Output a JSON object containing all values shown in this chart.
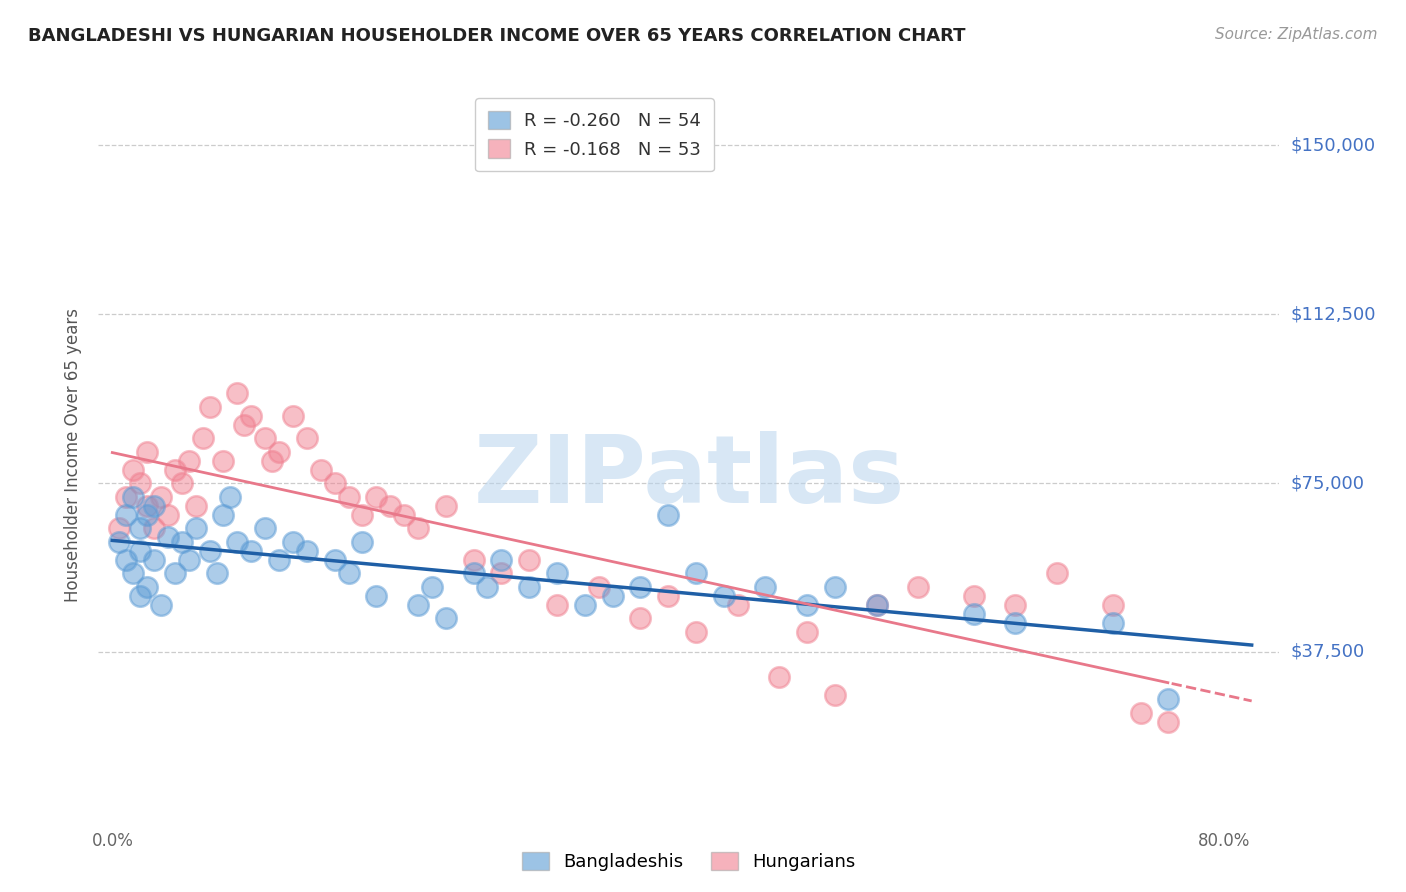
{
  "title": "BANGLADESHI VS HUNGARIAN HOUSEHOLDER INCOME OVER 65 YEARS CORRELATION CHART",
  "source": "Source: ZipAtlas.com",
  "ylabel": "Householder Income Over 65 years",
  "ylim": [
    0,
    162500
  ],
  "xlim": [
    -0.01,
    0.84
  ],
  "yticks": [
    0,
    37500,
    75000,
    112500,
    150000
  ],
  "ytick_labels": [
    "",
    "$37,500",
    "$75,000",
    "$112,500",
    "$150,000"
  ],
  "background_color": "#ffffff",
  "grid_color": "#cccccc",
  "watermark_text": "ZIPatlas",
  "blue_color": "#5b9bd5",
  "pink_color": "#f08090",
  "blue_line_color": "#1f5fa6",
  "pink_line_color": "#e8788a",
  "blue_R": -0.26,
  "blue_N": 54,
  "pink_R": -0.168,
  "pink_N": 53,
  "axis_label_color": "#4472c4",
  "title_color": "#222222",
  "bangladeshi_x": [
    0.005,
    0.01,
    0.01,
    0.015,
    0.015,
    0.02,
    0.02,
    0.02,
    0.025,
    0.025,
    0.03,
    0.03,
    0.035,
    0.04,
    0.045,
    0.05,
    0.055,
    0.06,
    0.07,
    0.075,
    0.08,
    0.085,
    0.09,
    0.1,
    0.11,
    0.12,
    0.13,
    0.14,
    0.16,
    0.17,
    0.18,
    0.19,
    0.22,
    0.23,
    0.24,
    0.26,
    0.27,
    0.28,
    0.3,
    0.32,
    0.34,
    0.36,
    0.38,
    0.4,
    0.42,
    0.44,
    0.47,
    0.5,
    0.52,
    0.55,
    0.62,
    0.65,
    0.72,
    0.76
  ],
  "bangladeshi_y": [
    62000,
    68000,
    58000,
    72000,
    55000,
    65000,
    60000,
    50000,
    68000,
    52000,
    70000,
    58000,
    48000,
    63000,
    55000,
    62000,
    58000,
    65000,
    60000,
    55000,
    68000,
    72000,
    62000,
    60000,
    65000,
    58000,
    62000,
    60000,
    58000,
    55000,
    62000,
    50000,
    48000,
    52000,
    45000,
    55000,
    52000,
    58000,
    52000,
    55000,
    48000,
    50000,
    52000,
    68000,
    55000,
    50000,
    52000,
    48000,
    52000,
    48000,
    46000,
    44000,
    44000,
    27000
  ],
  "hungarian_x": [
    0.005,
    0.01,
    0.015,
    0.02,
    0.025,
    0.025,
    0.03,
    0.035,
    0.04,
    0.045,
    0.05,
    0.055,
    0.06,
    0.065,
    0.07,
    0.08,
    0.09,
    0.095,
    0.1,
    0.11,
    0.115,
    0.12,
    0.13,
    0.14,
    0.15,
    0.16,
    0.17,
    0.18,
    0.19,
    0.2,
    0.21,
    0.22,
    0.24,
    0.26,
    0.28,
    0.3,
    0.32,
    0.35,
    0.38,
    0.4,
    0.42,
    0.45,
    0.48,
    0.5,
    0.52,
    0.55,
    0.58,
    0.62,
    0.65,
    0.68,
    0.72,
    0.74,
    0.76
  ],
  "hungarian_y": [
    65000,
    72000,
    78000,
    75000,
    70000,
    82000,
    65000,
    72000,
    68000,
    78000,
    75000,
    80000,
    70000,
    85000,
    92000,
    80000,
    95000,
    88000,
    90000,
    85000,
    80000,
    82000,
    90000,
    85000,
    78000,
    75000,
    72000,
    68000,
    72000,
    70000,
    68000,
    65000,
    70000,
    58000,
    55000,
    58000,
    48000,
    52000,
    45000,
    50000,
    42000,
    48000,
    32000,
    42000,
    28000,
    48000,
    52000,
    50000,
    48000,
    55000,
    48000,
    24000,
    22000
  ]
}
